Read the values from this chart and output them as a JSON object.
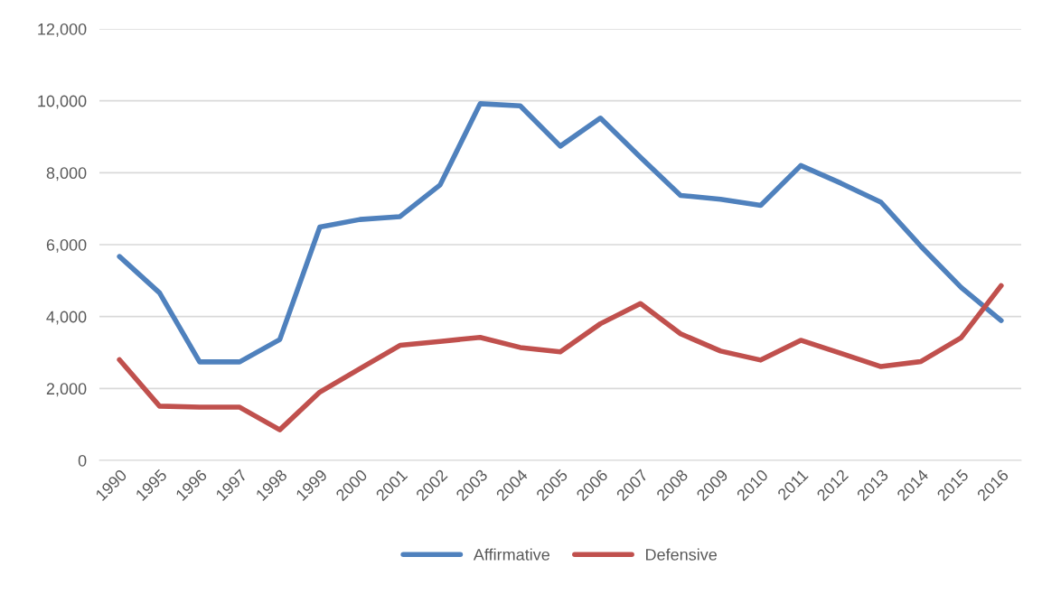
{
  "chart_data": {
    "type": "line",
    "categories": [
      "1990",
      "1995",
      "1996",
      "1997",
      "1998",
      "1999",
      "2000",
      "2001",
      "2002",
      "2003",
      "2004",
      "2005",
      "2006",
      "2007",
      "2008",
      "2009",
      "2010",
      "2011",
      "2012",
      "2013",
      "2014",
      "2015",
      "2016"
    ],
    "series": [
      {
        "name": "Affirmative",
        "color": "#4f81bd",
        "values": [
          5670,
          4660,
          2740,
          2740,
          3360,
          6490,
          6700,
          6780,
          7660,
          9920,
          9860,
          8740,
          9520,
          8430,
          7370,
          7260,
          7090,
          8200,
          7710,
          7180,
          5950,
          4810,
          3890
        ]
      },
      {
        "name": "Defensive",
        "color": "#c0504d",
        "values": [
          2800,
          1510,
          1480,
          1480,
          850,
          1900,
          2550,
          3200,
          3310,
          3420,
          3140,
          3020,
          3800,
          4360,
          3520,
          3040,
          2790,
          3340,
          2980,
          2610,
          2750,
          3410,
          4860
        ]
      }
    ],
    "ylim": [
      0,
      12000
    ],
    "yticks": [
      {
        "value": 0,
        "label": "0"
      },
      {
        "value": 2000,
        "label": "2,000"
      },
      {
        "value": 4000,
        "label": "4,000"
      },
      {
        "value": 6000,
        "label": "6,000"
      },
      {
        "value": 8000,
        "label": "8,000"
      },
      {
        "value": 10000,
        "label": "10,000"
      },
      {
        "value": 12000,
        "label": "12,000"
      }
    ],
    "grid": "y",
    "legend": "bottom",
    "marker": "none",
    "line_style": "solid"
  }
}
